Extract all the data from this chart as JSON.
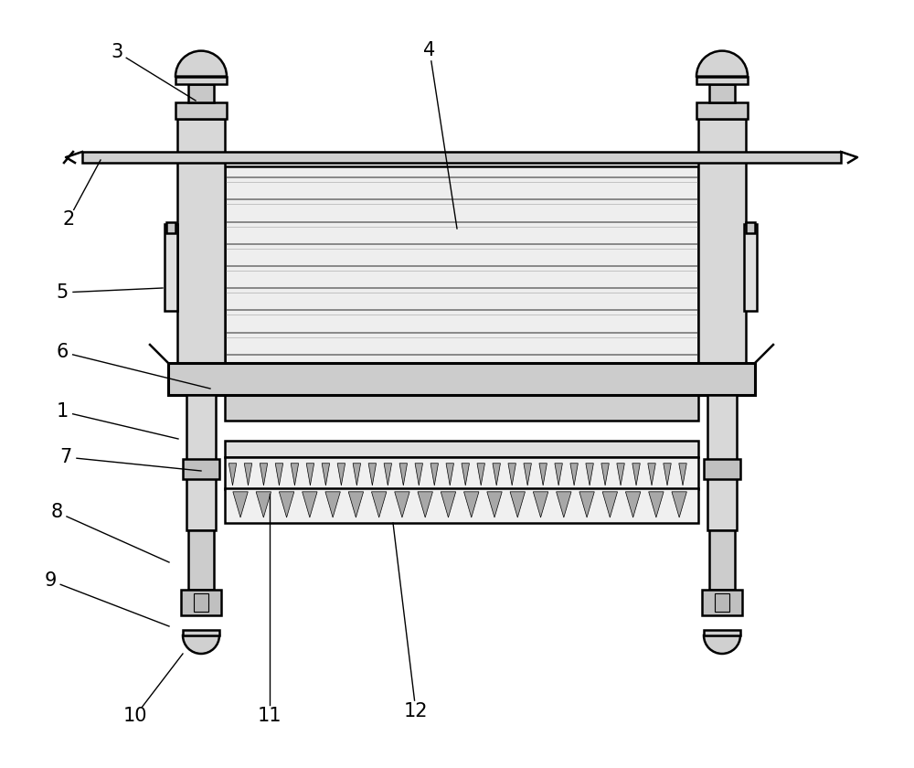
{
  "background_color": "#ffffff",
  "line_color": "#000000",
  "fill_post": "#d8d8d8",
  "fill_slats": "#e8e8e8",
  "fill_frame": "#cccccc",
  "fill_shelf": "#e0e0e0",
  "fill_bolt": "#c8c8c8",
  "fill_dome": "#d4d4d4",
  "label_fontsize": 15,
  "lw_main": 1.8,
  "lw_thin": 0.9,
  "lw_thick": 2.2
}
